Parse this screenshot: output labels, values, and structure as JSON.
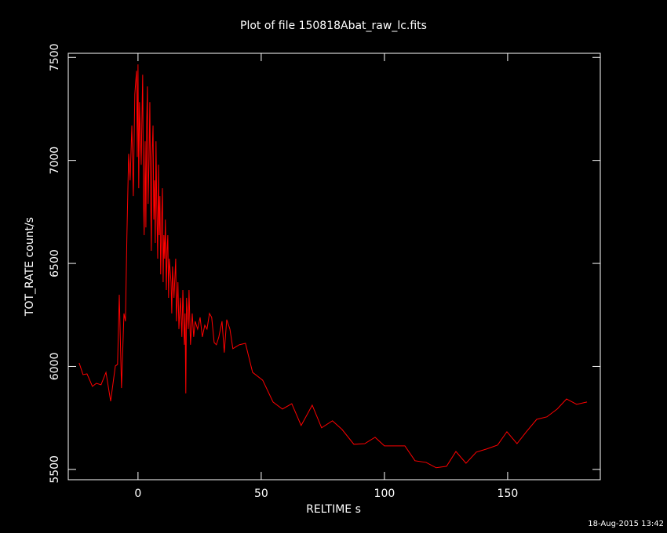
{
  "chart_data": {
    "type": "line",
    "title": "Plot of file 150818Abat_raw_lc.fits",
    "x_label": "RELTIME  s",
    "y_label": "TOT_RATE  count/s",
    "footer": "18-Aug-2015 13:42",
    "xlim": [
      -28.3,
      187.6
    ],
    "ylim": [
      5450,
      7520
    ],
    "xticks": [
      0,
      50,
      100,
      150
    ],
    "yticks": [
      5500,
      6000,
      6500,
      7000,
      7500
    ],
    "series": [
      {
        "color": "#ff0000",
        "x": [
          -23.9,
          -22.3,
          -20.7,
          -18.5,
          -16.9,
          -15,
          -13,
          -11.1,
          -9.2,
          -8.3,
          -7.6,
          -6.7,
          -5.7,
          -5.1,
          -4.5,
          -3.8,
          -3.2,
          -2.5,
          -1.9,
          -1.3,
          -0.6,
          -0.3,
          0,
          0.3,
          0.6,
          1.3,
          1.6,
          1.9,
          2.2,
          2.5,
          2.9,
          3.2,
          3.5,
          3.8,
          4.1,
          4.5,
          4.8,
          5.1,
          5.4,
          5.7,
          6.1,
          6.4,
          6.7,
          7,
          7.3,
          7.6,
          8,
          8.3,
          8.6,
          8.9,
          9.2,
          9.6,
          9.9,
          10.2,
          10.5,
          10.8,
          11.1,
          11.5,
          11.8,
          12.1,
          12.4,
          12.7,
          13.4,
          13.7,
          14,
          14.6,
          15.3,
          15.6,
          16.2,
          16.6,
          17.2,
          17.8,
          18.2,
          18.8,
          19.1,
          19.4,
          19.7,
          20.4,
          20.7,
          21.3,
          22,
          22.6,
          23.2,
          24.2,
          25.2,
          26.1,
          27.1,
          28,
          29,
          29.9,
          30.9,
          31.8,
          32.8,
          34.1,
          35,
          36,
          37.3,
          38.5,
          41.1,
          43.6,
          46.5,
          50.6,
          54.8,
          58.6,
          62.4,
          66.2,
          70.7,
          74.5,
          78.9,
          82.8,
          87.6,
          92,
          96.2,
          100,
          104.1,
          108.3,
          112.4,
          116.9,
          121,
          125.2,
          129,
          133.1,
          137.3,
          141.4,
          145.9,
          149.7,
          153.8,
          157.6,
          161.8,
          165.9,
          170.1,
          173.9,
          178,
          182.2
        ],
        "values": [
          6017,
          5960,
          5964,
          5903,
          5918,
          5911,
          5971,
          5831,
          6002,
          6010,
          6348,
          5895,
          6257,
          6219,
          6637,
          7032,
          6903,
          7169,
          6827,
          7321,
          7435,
          7017,
          7466,
          6865,
          7283,
          6979,
          7207,
          7416,
          6827,
          6637,
          7093,
          6675,
          7169,
          7359,
          6789,
          7017,
          7283,
          6865,
          6561,
          7017,
          7169,
          6713,
          6903,
          6599,
          7093,
          6789,
          6523,
          6979,
          6637,
          6827,
          6447,
          6713,
          6865,
          6409,
          6637,
          6523,
          6713,
          6371,
          6561,
          6637,
          6333,
          6523,
          6409,
          6257,
          6485,
          6333,
          6523,
          6219,
          6409,
          6181,
          6333,
          6143,
          6371,
          6105,
          6257,
          5869,
          6333,
          6181,
          6371,
          6105,
          6257,
          6143,
          6219,
          6181,
          6238,
          6143,
          6200,
          6181,
          6257,
          6238,
          6116,
          6105,
          6143,
          6219,
          6067,
          6227,
          6181,
          6086,
          6105,
          6112,
          5971,
          5933,
          5827,
          5793,
          5819,
          5713,
          5812,
          5702,
          5736,
          5694,
          5622,
          5625,
          5656,
          5614,
          5614,
          5614,
          5542,
          5534,
          5508,
          5515,
          5587,
          5530,
          5584,
          5599,
          5618,
          5683,
          5625,
          5683,
          5743,
          5755,
          5793,
          5842,
          5816,
          5827
        ]
      }
    ]
  }
}
